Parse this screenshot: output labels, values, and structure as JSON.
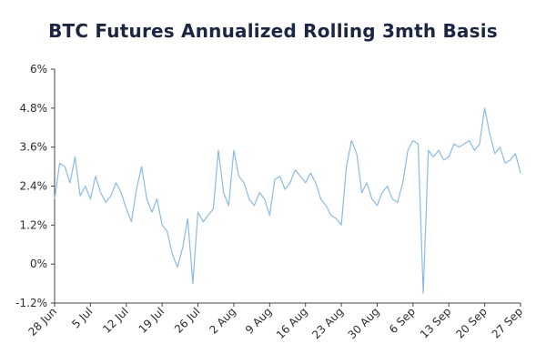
{
  "chart_data": {
    "type": "line",
    "title": "BTC Futures Annualized Rolling 3mth Basis",
    "xlabel": "",
    "ylabel": "",
    "x_ticks": [
      "28 Jun",
      "5 Jul",
      "12 Jul",
      "19 Jul",
      "26 Jul",
      "2 Aug",
      "9 Aug",
      "16 Aug",
      "23 Aug",
      "30 Aug",
      "6 Sep",
      "13 Sep",
      "20 Sep",
      "27 Sep"
    ],
    "y_ticks": [
      "-1.2%",
      "0%",
      "1.2%",
      "2.4%",
      "3.6%",
      "4.8%",
      "6%"
    ],
    "ylim": [
      -1.2,
      6.0
    ],
    "xlim": [
      "2021-06-28",
      "2021-09-27"
    ],
    "grid": false,
    "line_color": "#8bbbe3",
    "series": [
      {
        "x": [
          "2021-06-28",
          "2021-06-29",
          "2021-06-30",
          "2021-07-01",
          "2021-07-02",
          "2021-07-03",
          "2021-07-04",
          "2021-07-05",
          "2021-07-06",
          "2021-07-07",
          "2021-07-08",
          "2021-07-09",
          "2021-07-10",
          "2021-07-11",
          "2021-07-12",
          "2021-07-13",
          "2021-07-14",
          "2021-07-15",
          "2021-07-16",
          "2021-07-17",
          "2021-07-18",
          "2021-07-19",
          "2021-07-20",
          "2021-07-21",
          "2021-07-22",
          "2021-07-23",
          "2021-07-24",
          "2021-07-25",
          "2021-07-26",
          "2021-07-27",
          "2021-07-28",
          "2021-07-29",
          "2021-07-30",
          "2021-07-31",
          "2021-08-01",
          "2021-08-02",
          "2021-08-03",
          "2021-08-04",
          "2021-08-05",
          "2021-08-06",
          "2021-08-07",
          "2021-08-08",
          "2021-08-09",
          "2021-08-10",
          "2021-08-11",
          "2021-08-12",
          "2021-08-13",
          "2021-08-14",
          "2021-08-15",
          "2021-08-16",
          "2021-08-17",
          "2021-08-18",
          "2021-08-19",
          "2021-08-20",
          "2021-08-21",
          "2021-08-22",
          "2021-08-23",
          "2021-08-24",
          "2021-08-25",
          "2021-08-26",
          "2021-08-27",
          "2021-08-28",
          "2021-08-29",
          "2021-08-30",
          "2021-08-31",
          "2021-09-01",
          "2021-09-02",
          "2021-09-03",
          "2021-09-04",
          "2021-09-05",
          "2021-09-06",
          "2021-09-07",
          "2021-09-08",
          "2021-09-09",
          "2021-09-10",
          "2021-09-11",
          "2021-09-12",
          "2021-09-13",
          "2021-09-14",
          "2021-09-15",
          "2021-09-16",
          "2021-09-17",
          "2021-09-18",
          "2021-09-19",
          "2021-09-20",
          "2021-09-21",
          "2021-09-22",
          "2021-09-23",
          "2021-09-24",
          "2021-09-25",
          "2021-09-26",
          "2021-09-27"
        ],
        "values": [
          2.0,
          3.1,
          3.0,
          2.5,
          3.3,
          2.1,
          2.4,
          2.0,
          2.7,
          2.2,
          1.9,
          2.1,
          2.5,
          2.2,
          1.7,
          1.3,
          2.3,
          3.0,
          2.0,
          1.6,
          2.0,
          1.2,
          1.0,
          0.3,
          -0.1,
          0.5,
          1.4,
          -0.6,
          1.6,
          1.3,
          1.5,
          1.7,
          3.5,
          2.2,
          1.8,
          3.5,
          2.7,
          2.5,
          2.0,
          1.8,
          2.2,
          2.0,
          1.5,
          2.6,
          2.7,
          2.3,
          2.5,
          2.9,
          2.7,
          2.5,
          2.8,
          2.5,
          2.0,
          1.8,
          1.5,
          1.4,
          1.2,
          3.0,
          3.8,
          3.4,
          2.2,
          2.5,
          2.0,
          1.8,
          2.2,
          2.4,
          2.0,
          1.9,
          2.5,
          3.5,
          3.8,
          3.7,
          -0.9,
          3.5,
          3.3,
          3.5,
          3.2,
          3.3,
          3.7,
          3.6,
          3.7,
          3.8,
          3.5,
          3.7,
          4.8,
          4.0,
          3.4,
          3.6,
          3.1,
          3.2,
          3.4,
          2.8
        ]
      }
    ]
  }
}
